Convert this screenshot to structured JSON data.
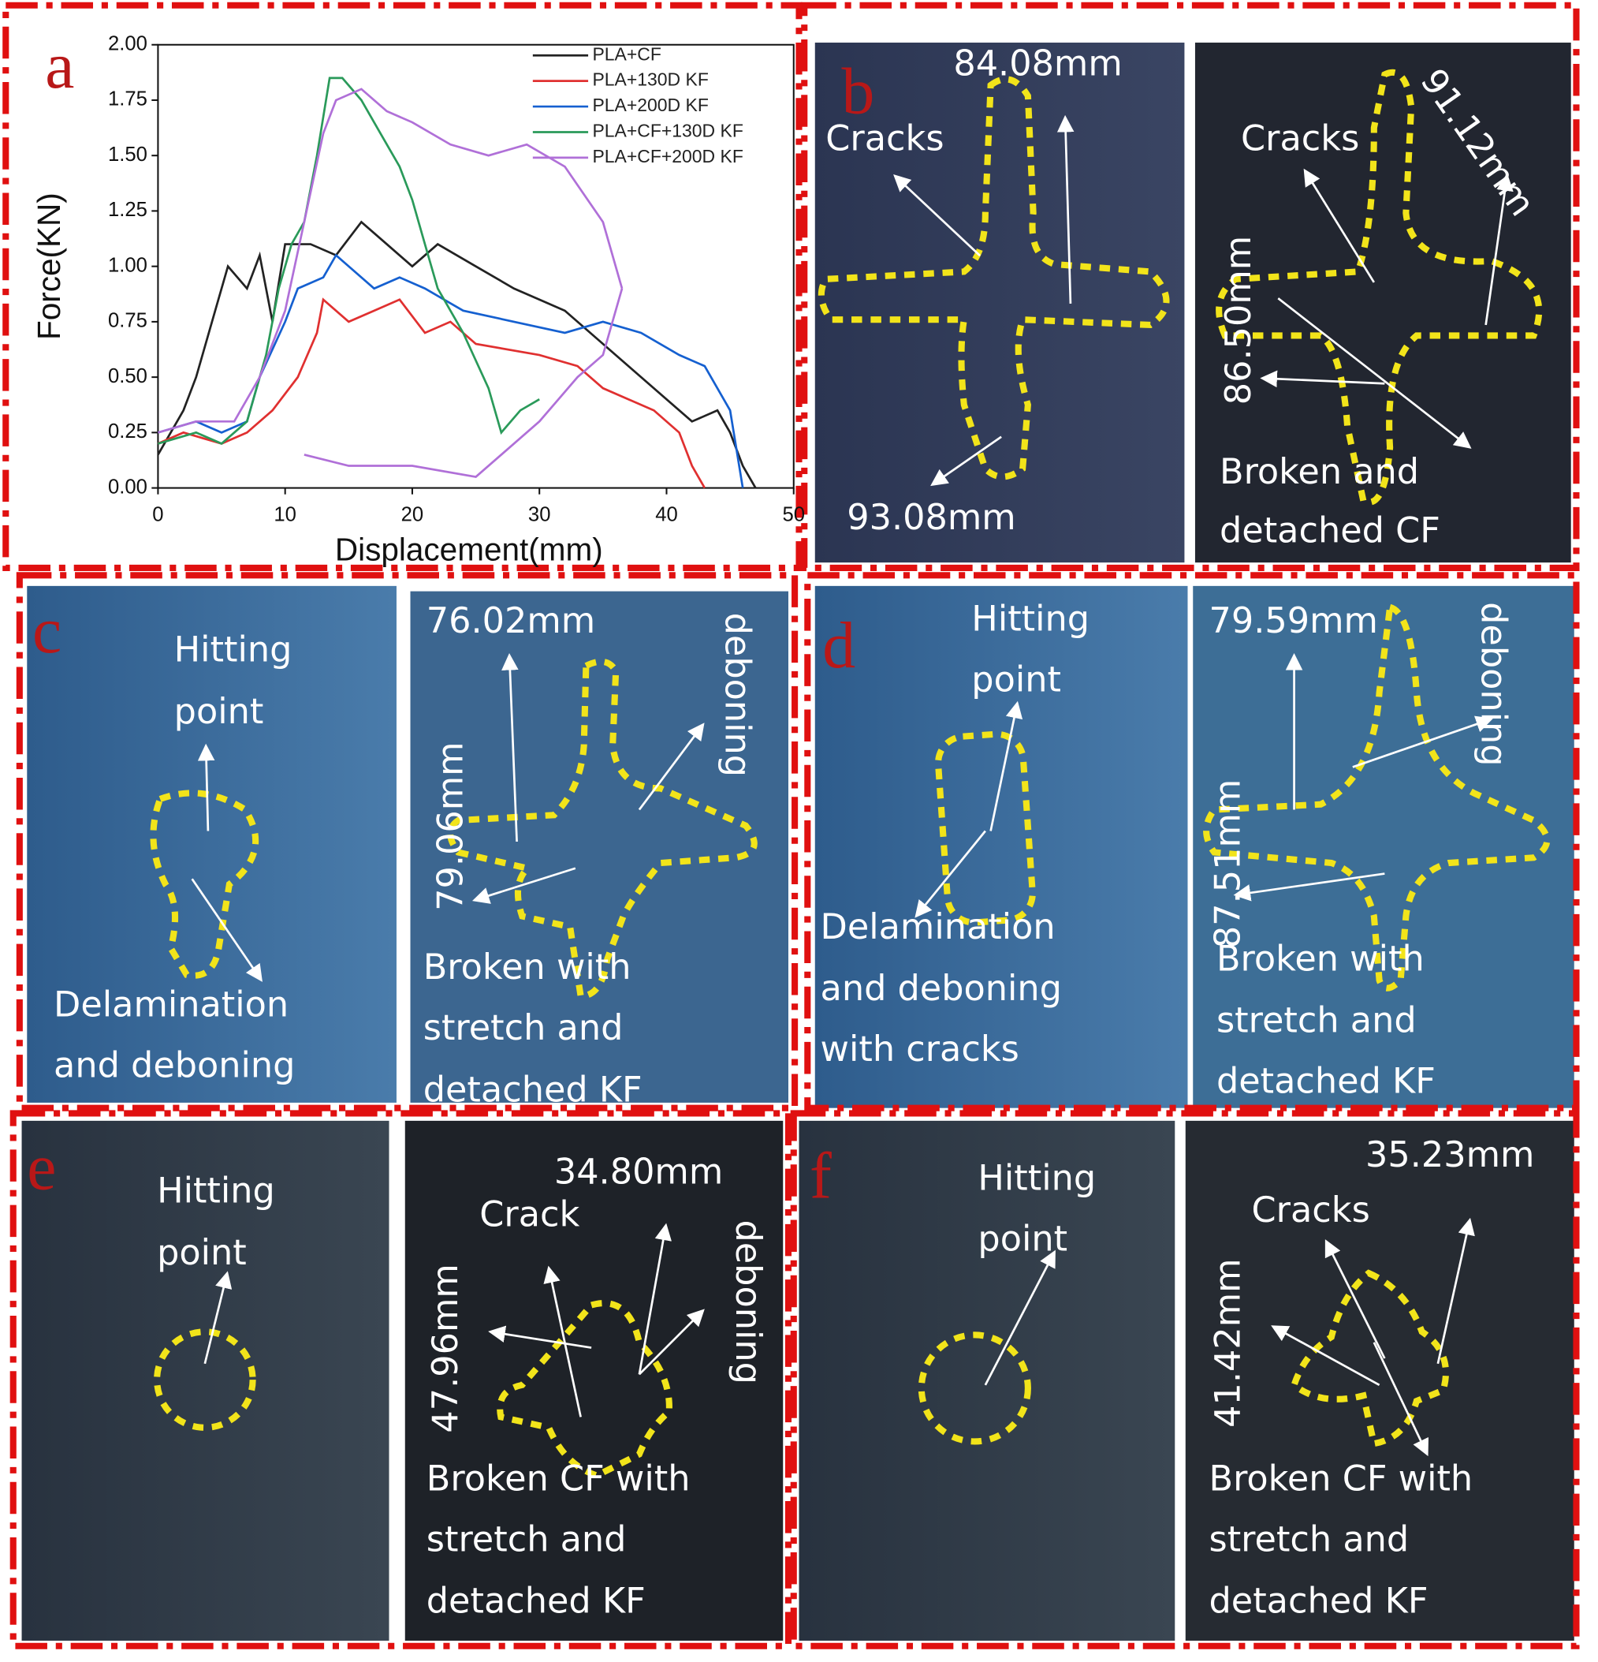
{
  "chart_data": {
    "type": "line",
    "xlabel": "Displacement(mm)",
    "ylabel": "Force(KN)",
    "xlim": [
      0,
      50
    ],
    "ylim": [
      0,
      2
    ],
    "xticks": [
      0,
      10,
      20,
      30,
      40,
      50
    ],
    "yticks": [
      {
        "value": 0,
        "label": "0.00"
      },
      {
        "value": 0.25,
        "label": "0.25"
      },
      {
        "value": 0.5,
        "label": "0.50"
      },
      {
        "value": 0.75,
        "label": "0.75"
      },
      {
        "value": 1,
        "label": "1.00"
      },
      {
        "value": 1.25,
        "label": "1.25"
      },
      {
        "value": 1.5,
        "label": "1.50"
      },
      {
        "value": 1.75,
        "label": "1.75"
      },
      {
        "value": 2,
        "label": "2.00"
      }
    ],
    "legend": "upper right",
    "series": [
      {
        "name": "PLA+CF",
        "color": "#222222",
        "x": [
          0,
          2,
          3,
          4.5,
          5.5,
          7,
          8,
          9,
          10,
          12,
          14,
          16,
          18,
          20,
          22,
          25,
          28,
          32,
          35,
          38,
          42,
          44,
          45,
          46,
          47
        ],
        "values": [
          0.15,
          0.35,
          0.5,
          0.8,
          1.0,
          0.9,
          1.05,
          0.75,
          1.1,
          1.1,
          1.05,
          1.2,
          1.1,
          1.0,
          1.1,
          1.0,
          0.9,
          0.8,
          0.65,
          0.5,
          0.3,
          0.35,
          0.25,
          0.1,
          0
        ]
      },
      {
        "name": "PLA+130D KF",
        "color": "#e03030",
        "x": [
          0,
          2,
          5,
          7,
          9,
          11,
          12.5,
          13,
          15,
          17,
          19,
          21,
          23,
          25,
          30,
          33,
          35,
          37,
          39,
          41,
          42,
          43
        ],
        "values": [
          0.2,
          0.25,
          0.2,
          0.25,
          0.35,
          0.5,
          0.7,
          0.85,
          0.75,
          0.8,
          0.85,
          0.7,
          0.75,
          0.65,
          0.6,
          0.55,
          0.45,
          0.4,
          0.35,
          0.25,
          0.1,
          0
        ]
      },
      {
        "name": "PLA+200D KF",
        "color": "#1560d0",
        "x": [
          0,
          3,
          5,
          7,
          8,
          10,
          11,
          13,
          14,
          15,
          17,
          19,
          21,
          24,
          28,
          32,
          35,
          38,
          41,
          43,
          45,
          46
        ],
        "values": [
          0.25,
          0.3,
          0.25,
          0.3,
          0.5,
          0.75,
          0.9,
          0.95,
          1.05,
          1.0,
          0.9,
          0.95,
          0.9,
          0.8,
          0.75,
          0.7,
          0.75,
          0.7,
          0.6,
          0.55,
          0.35,
          0
        ]
      },
      {
        "name": "PLA+CF+130D KF",
        "color": "#2a9a5a",
        "x": [
          0,
          3,
          5,
          7,
          8.5,
          9.5,
          10.5,
          11.5,
          12.5,
          13.5,
          14.5,
          16,
          17.5,
          19,
          20,
          21,
          22,
          24,
          26,
          27,
          28.5,
          30
        ],
        "values": [
          0.2,
          0.25,
          0.2,
          0.3,
          0.6,
          0.9,
          1.1,
          1.2,
          1.5,
          1.85,
          1.85,
          1.75,
          1.6,
          1.45,
          1.3,
          1.1,
          0.9,
          0.7,
          0.45,
          0.25,
          0.35,
          0.4
        ]
      },
      {
        "name": "PLA+CF+200D KF",
        "color": "#b070d8",
        "x": [
          0,
          3,
          6,
          8,
          10,
          11.5,
          13,
          14,
          16,
          18,
          20,
          23,
          26,
          29,
          32,
          35,
          36.5,
          null,
          11.5,
          15,
          20,
          25,
          27,
          30,
          33,
          35,
          36.5
        ],
        "values": [
          0.25,
          0.3,
          0.3,
          0.5,
          0.8,
          1.2,
          1.6,
          1.75,
          1.8,
          1.7,
          1.65,
          1.55,
          1.5,
          1.55,
          1.45,
          1.2,
          0.9,
          null,
          0.15,
          0.1,
          0.1,
          0.05,
          0.15,
          0.3,
          0.5,
          0.6,
          0.9
        ]
      }
    ]
  },
  "panels": [
    {
      "label": "a",
      "texts": []
    },
    {
      "label": "b",
      "texts": [
        "84.08mm",
        "Cracks",
        "93.08mm",
        "91.12mm",
        "Cracks",
        "86.50mm",
        "Broken    and",
        "detached CF"
      ]
    },
    {
      "label": "c",
      "texts": [
        "Hitting",
        "point",
        "Delamination",
        "and deboning",
        "76.02mm",
        "deboning",
        "79.06mm",
        "Broken     with",
        "stretch and",
        "detached KF"
      ]
    },
    {
      "label": "d",
      "texts": [
        "Hitting",
        "point",
        "Delamination",
        "and deboning",
        "with cracks",
        "79.59mm",
        "deboning",
        "87.51mm",
        "Broken     with",
        "stretch and",
        "detached KF"
      ]
    },
    {
      "label": "e",
      "texts": [
        "Hitting",
        "point",
        "34.80mm",
        "Crack",
        "deboning",
        "47.96mm",
        "Broken    CF with",
        "stretch and",
        "detached KF"
      ]
    },
    {
      "label": "f",
      "texts": [
        "Hitting",
        "point",
        "35.23mm",
        "Cracks",
        "41.42mm",
        "Broken CF with",
        "stretch and",
        "detached KF"
      ]
    }
  ]
}
